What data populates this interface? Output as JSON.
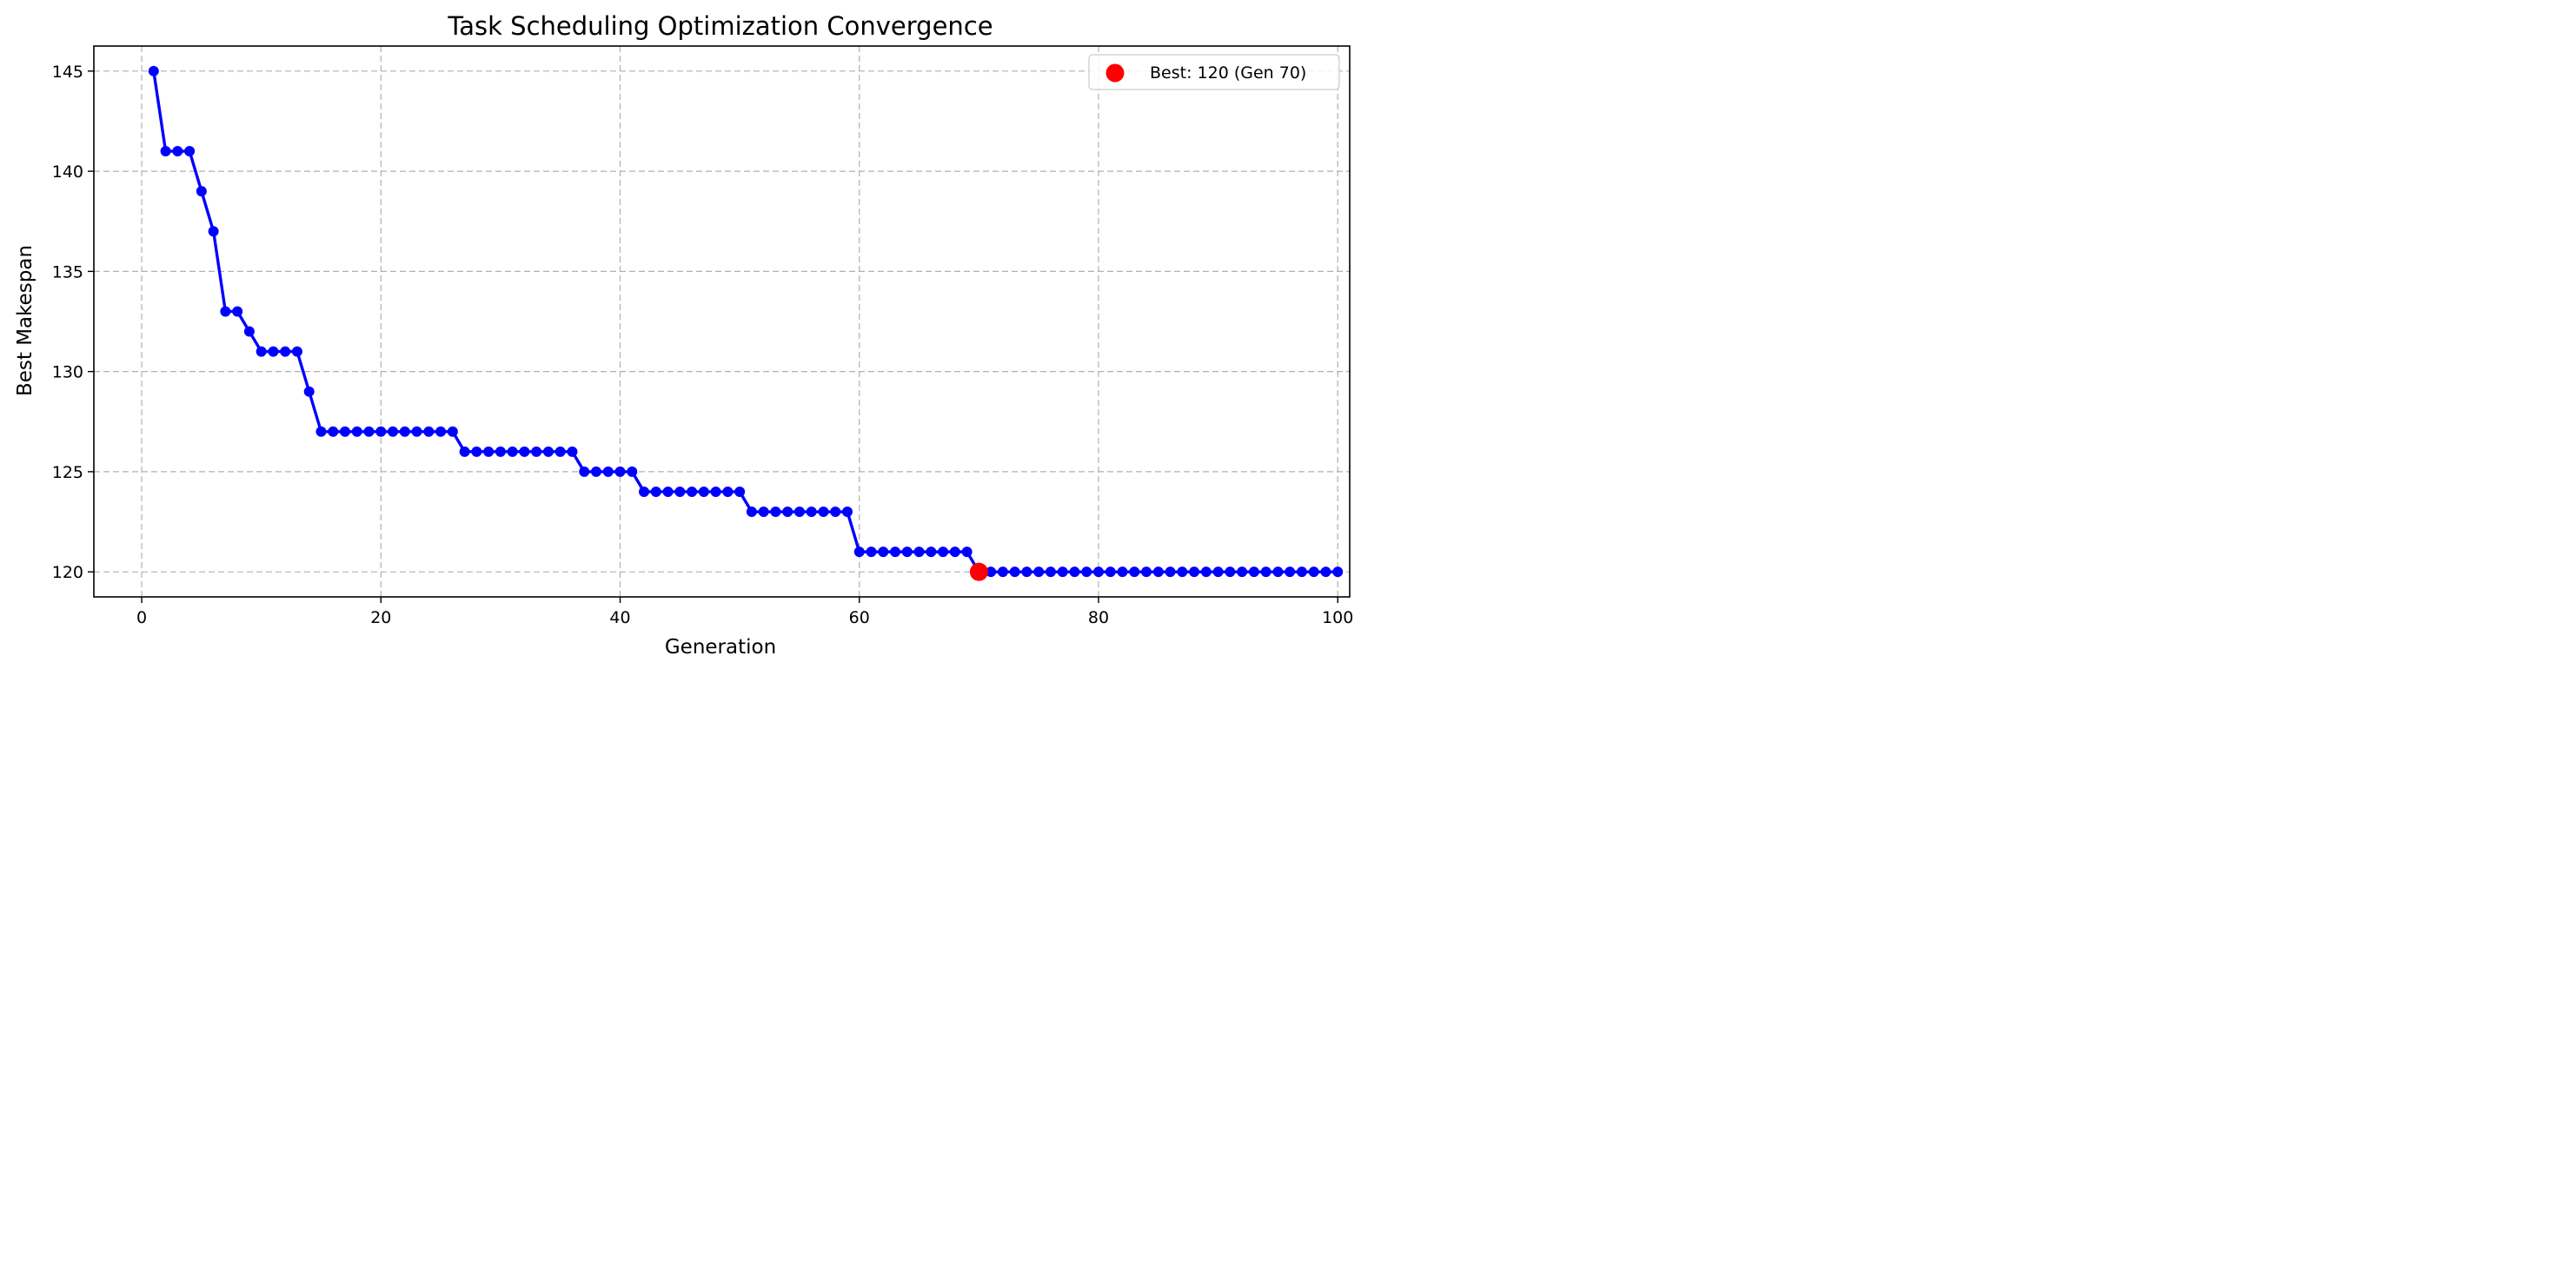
{
  "chart_data": {
    "type": "line",
    "title": "Task Scheduling Optimization Convergence",
    "xlabel": "Generation",
    "ylabel": "Best Makespan",
    "xlim": [
      -4,
      101
    ],
    "ylim": [
      118.75,
      146.25
    ],
    "xticks": [
      0,
      20,
      40,
      60,
      80,
      100
    ],
    "yticks": [
      120,
      125,
      130,
      135,
      140,
      145
    ],
    "grid": true,
    "legend_position": "top-right",
    "line_color": "#0000ff",
    "highlight_color": "#ff0000",
    "x": [
      1,
      2,
      3,
      4,
      5,
      6,
      7,
      8,
      9,
      10,
      11,
      12,
      13,
      14,
      15,
      16,
      17,
      18,
      19,
      20,
      21,
      22,
      23,
      24,
      25,
      26,
      27,
      28,
      29,
      30,
      31,
      32,
      33,
      34,
      35,
      36,
      37,
      38,
      39,
      40,
      41,
      42,
      43,
      44,
      45,
      46,
      47,
      48,
      49,
      50,
      51,
      52,
      53,
      54,
      55,
      56,
      57,
      58,
      59,
      60,
      61,
      62,
      63,
      64,
      65,
      66,
      67,
      68,
      69,
      70,
      71,
      72,
      73,
      74,
      75,
      76,
      77,
      78,
      79,
      80,
      81,
      82,
      83,
      84,
      85,
      86,
      87,
      88,
      89,
      90,
      91,
      92,
      93,
      94,
      95,
      96,
      97,
      98,
      99,
      100
    ],
    "series": [
      {
        "values": [
          145,
          141,
          141,
          141,
          139,
          137,
          133,
          133,
          132,
          131,
          131,
          131,
          131,
          129,
          127,
          127,
          127,
          127,
          127,
          127,
          127,
          127,
          127,
          127,
          127,
          127,
          126,
          126,
          126,
          126,
          126,
          126,
          126,
          126,
          126,
          126,
          125,
          125,
          125,
          125,
          125,
          124,
          124,
          124,
          124,
          124,
          124,
          124,
          124,
          124,
          123,
          123,
          123,
          123,
          123,
          123,
          123,
          123,
          123,
          121,
          121,
          121,
          121,
          121,
          121,
          121,
          121,
          121,
          121,
          120,
          120,
          120,
          120,
          120,
          120,
          120,
          120,
          120,
          120,
          120,
          120,
          120,
          120,
          120,
          120,
          120,
          120,
          120,
          120,
          120,
          120,
          120,
          120,
          120,
          120,
          120,
          120,
          120,
          120,
          120
        ]
      }
    ],
    "highlight": {
      "label": "Best: 120 (Gen 70)",
      "x": 70,
      "y": 120
    }
  }
}
